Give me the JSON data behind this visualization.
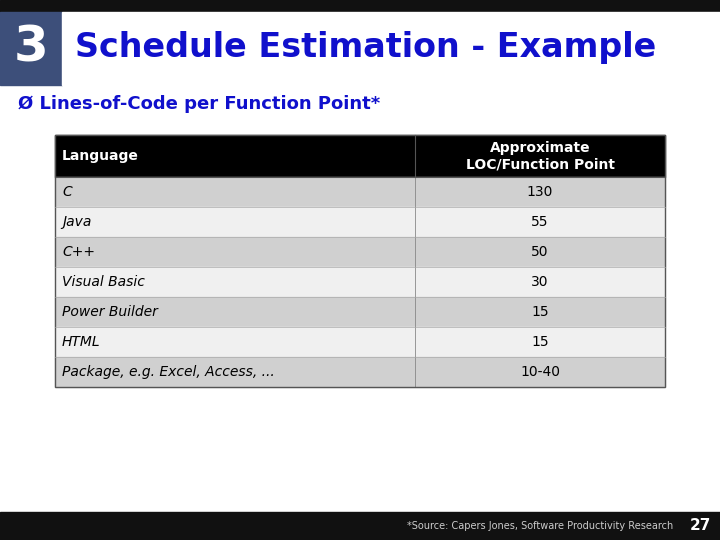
{
  "title_number": "3",
  "title_text": "Schedule Estimation - Example",
  "subtitle": "Ø Lines-of-Code per Function Point*",
  "table_headers": [
    "Language",
    "Approximate\nLOC/Function Point"
  ],
  "table_rows": [
    [
      "C",
      "130"
    ],
    [
      "Java",
      "55"
    ],
    [
      "C++",
      "50"
    ],
    [
      "Visual Basic",
      "30"
    ],
    [
      "Power Builder",
      "15"
    ],
    [
      "HTML",
      "15"
    ],
    [
      "Package, e.g. Excel, Access, ...",
      "10-40"
    ]
  ],
  "header_bg": "#000000",
  "header_fg": "#ffffff",
  "row_bg_odd": "#d0d0d0",
  "row_bg_even": "#f0f0f0",
  "title_color": "#1010cc",
  "title_number_color": "#ffffff",
  "slide_bg": "#ffffff",
  "top_bar_bg": "#111111",
  "bottom_bar_bg": "#111111",
  "subtitle_color": "#1010cc",
  "footer_text": "*Source: Capers Jones, Software Productivity Research",
  "page_number": "27",
  "number_box_color": "#4a5f8a",
  "top_bg_color": "#7080b0"
}
